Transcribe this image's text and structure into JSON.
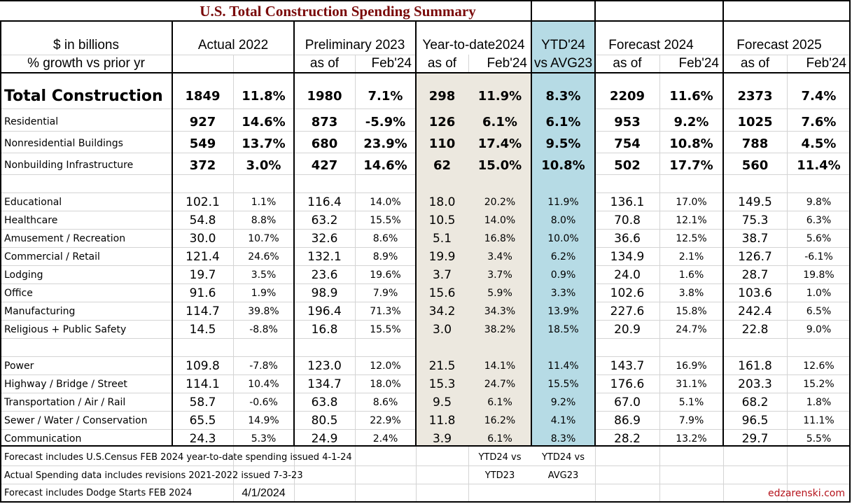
{
  "title": "U.S. Total Construction Spending Summary",
  "colors": {
    "title": "#7a0a0a",
    "ytd_fill": "#ece8df",
    "avg_fill": "#b6dbe5",
    "brand": "#b5121b"
  },
  "header": {
    "row1": {
      "label": "$ in billions",
      "actual": "Actual 2022",
      "prelim": "Preliminary 2023",
      "ytd": "Year-to-date2024",
      "ytd_avg": "YTD'24",
      "fc24": "Forecast 2024",
      "fc25": "Forecast 2025"
    },
    "row2": {
      "label": "% growth vs prior yr",
      "prelim_a": "as of",
      "prelim_b": "Feb'24",
      "ytd_a": "as of",
      "ytd_b": "Feb'24",
      "ytd_avg": "vs AVG23",
      "fc24_a": "as of",
      "fc24_b": "Feb'24",
      "fc25_a": "as of",
      "fc25_b": "Feb'24"
    }
  },
  "total": {
    "label": "Total Construction",
    "values": [
      "1849",
      "11.8%",
      "1980",
      "7.1%",
      "298",
      "11.9%",
      "8.3%",
      "2209",
      "11.6%",
      "2373",
      "7.4%"
    ]
  },
  "major": [
    {
      "label": "Residential",
      "values": [
        "927",
        "14.6%",
        "873",
        "-5.9%",
        "126",
        "6.1%",
        "6.1%",
        "953",
        "9.2%",
        "1025",
        "7.6%"
      ]
    },
    {
      "label": "Nonresidential Buildings",
      "values": [
        "549",
        "13.7%",
        "680",
        "23.9%",
        "110",
        "17.4%",
        "9.5%",
        "754",
        "10.8%",
        "788",
        "4.5%"
      ]
    },
    {
      "label": "Nonbuilding Infrastructure",
      "values": [
        "372",
        "3.0%",
        "427",
        "14.6%",
        "62",
        "15.0%",
        "10.8%",
        "502",
        "17.7%",
        "560",
        "11.4%"
      ]
    }
  ],
  "nonres": [
    {
      "label": "Educational",
      "values": [
        "102.1",
        "1.1%",
        "116.4",
        "14.0%",
        "18.0",
        "20.2%",
        "11.9%",
        "136.1",
        "17.0%",
        "149.5",
        "9.8%"
      ]
    },
    {
      "label": "Healthcare",
      "values": [
        "54.8",
        "8.8%",
        "63.2",
        "15.5%",
        "10.5",
        "14.0%",
        "8.0%",
        "70.8",
        "12.1%",
        "75.3",
        "6.3%"
      ]
    },
    {
      "label": "Amusement / Recreation",
      "values": [
        "30.0",
        "10.7%",
        "32.6",
        "8.6%",
        "5.1",
        "16.8%",
        "10.0%",
        "36.6",
        "12.5%",
        "38.7",
        "5.6%"
      ]
    },
    {
      "label": "Commercial / Retail",
      "values": [
        "121.4",
        "24.6%",
        "132.1",
        "8.9%",
        "19.9",
        "3.4%",
        "6.2%",
        "134.9",
        "2.1%",
        "126.7",
        "-6.1%"
      ]
    },
    {
      "label": "Lodging",
      "values": [
        "19.7",
        "3.5%",
        "23.6",
        "19.6%",
        "3.7",
        "3.7%",
        "0.9%",
        "24.0",
        "1.6%",
        "28.7",
        "19.8%"
      ]
    },
    {
      "label": "Office",
      "values": [
        "91.6",
        "1.9%",
        "98.9",
        "7.9%",
        "15.6",
        "5.9%",
        "3.3%",
        "102.6",
        "3.8%",
        "103.6",
        "1.0%"
      ]
    },
    {
      "label": "Manufacturing",
      "values": [
        "114.7",
        "39.8%",
        "196.4",
        "71.3%",
        "34.2",
        "34.3%",
        "13.9%",
        "227.6",
        "15.8%",
        "242.4",
        "6.5%"
      ]
    },
    {
      "label": "Religious + Public Safety",
      "values": [
        "14.5",
        "-8.8%",
        "16.8",
        "15.5%",
        "3.0",
        "38.2%",
        "18.5%",
        "20.9",
        "24.7%",
        "22.8",
        "9.0%"
      ]
    }
  ],
  "infra": [
    {
      "label": "Power",
      "values": [
        "109.8",
        "-7.8%",
        "123.0",
        "12.0%",
        "21.5",
        "14.1%",
        "11.4%",
        "143.7",
        "16.9%",
        "161.8",
        "12.6%"
      ]
    },
    {
      "label": "Highway / Bridge / Street",
      "values": [
        "114.1",
        "10.4%",
        "134.7",
        "18.0%",
        "15.3",
        "24.7%",
        "15.5%",
        "176.6",
        "31.1%",
        "203.3",
        "15.2%"
      ]
    },
    {
      "label": "Transportation / Air / Rail",
      "values": [
        "58.7",
        "-0.6%",
        "63.8",
        "8.6%",
        "9.5",
        "6.1%",
        "9.2%",
        "67.0",
        "5.1%",
        "68.2",
        "1.8%"
      ]
    },
    {
      "label": "Sewer / Water / Conservation",
      "values": [
        "65.5",
        "14.9%",
        "80.5",
        "22.9%",
        "11.8",
        "16.2%",
        "4.1%",
        "86.9",
        "7.9%",
        "96.5",
        "11.1%"
      ]
    },
    {
      "label": "Communication",
      "values": [
        "24.3",
        "5.3%",
        "24.9",
        "2.4%",
        "3.9",
        "6.1%",
        "8.3%",
        "28.2",
        "13.2%",
        "29.7",
        "5.5%"
      ]
    }
  ],
  "footer": {
    "note1": "Forecast includes U.S.Census FEB 2024 year-to-date spending issued 4-1-24",
    "note2": "Actual Spending data includes revisions 2021-2022 issued 7-3-23",
    "note3": "Forecast includes Dodge Starts FEB 2024",
    "date": "4/1/2024",
    "legend_ytd_line1": "YTD24 vs",
    "legend_ytd_line2": "YTD23",
    "legend_avg_line1": "YTD24 vs",
    "legend_avg_line2": "AVG23",
    "brand": "edzarenski.com"
  }
}
